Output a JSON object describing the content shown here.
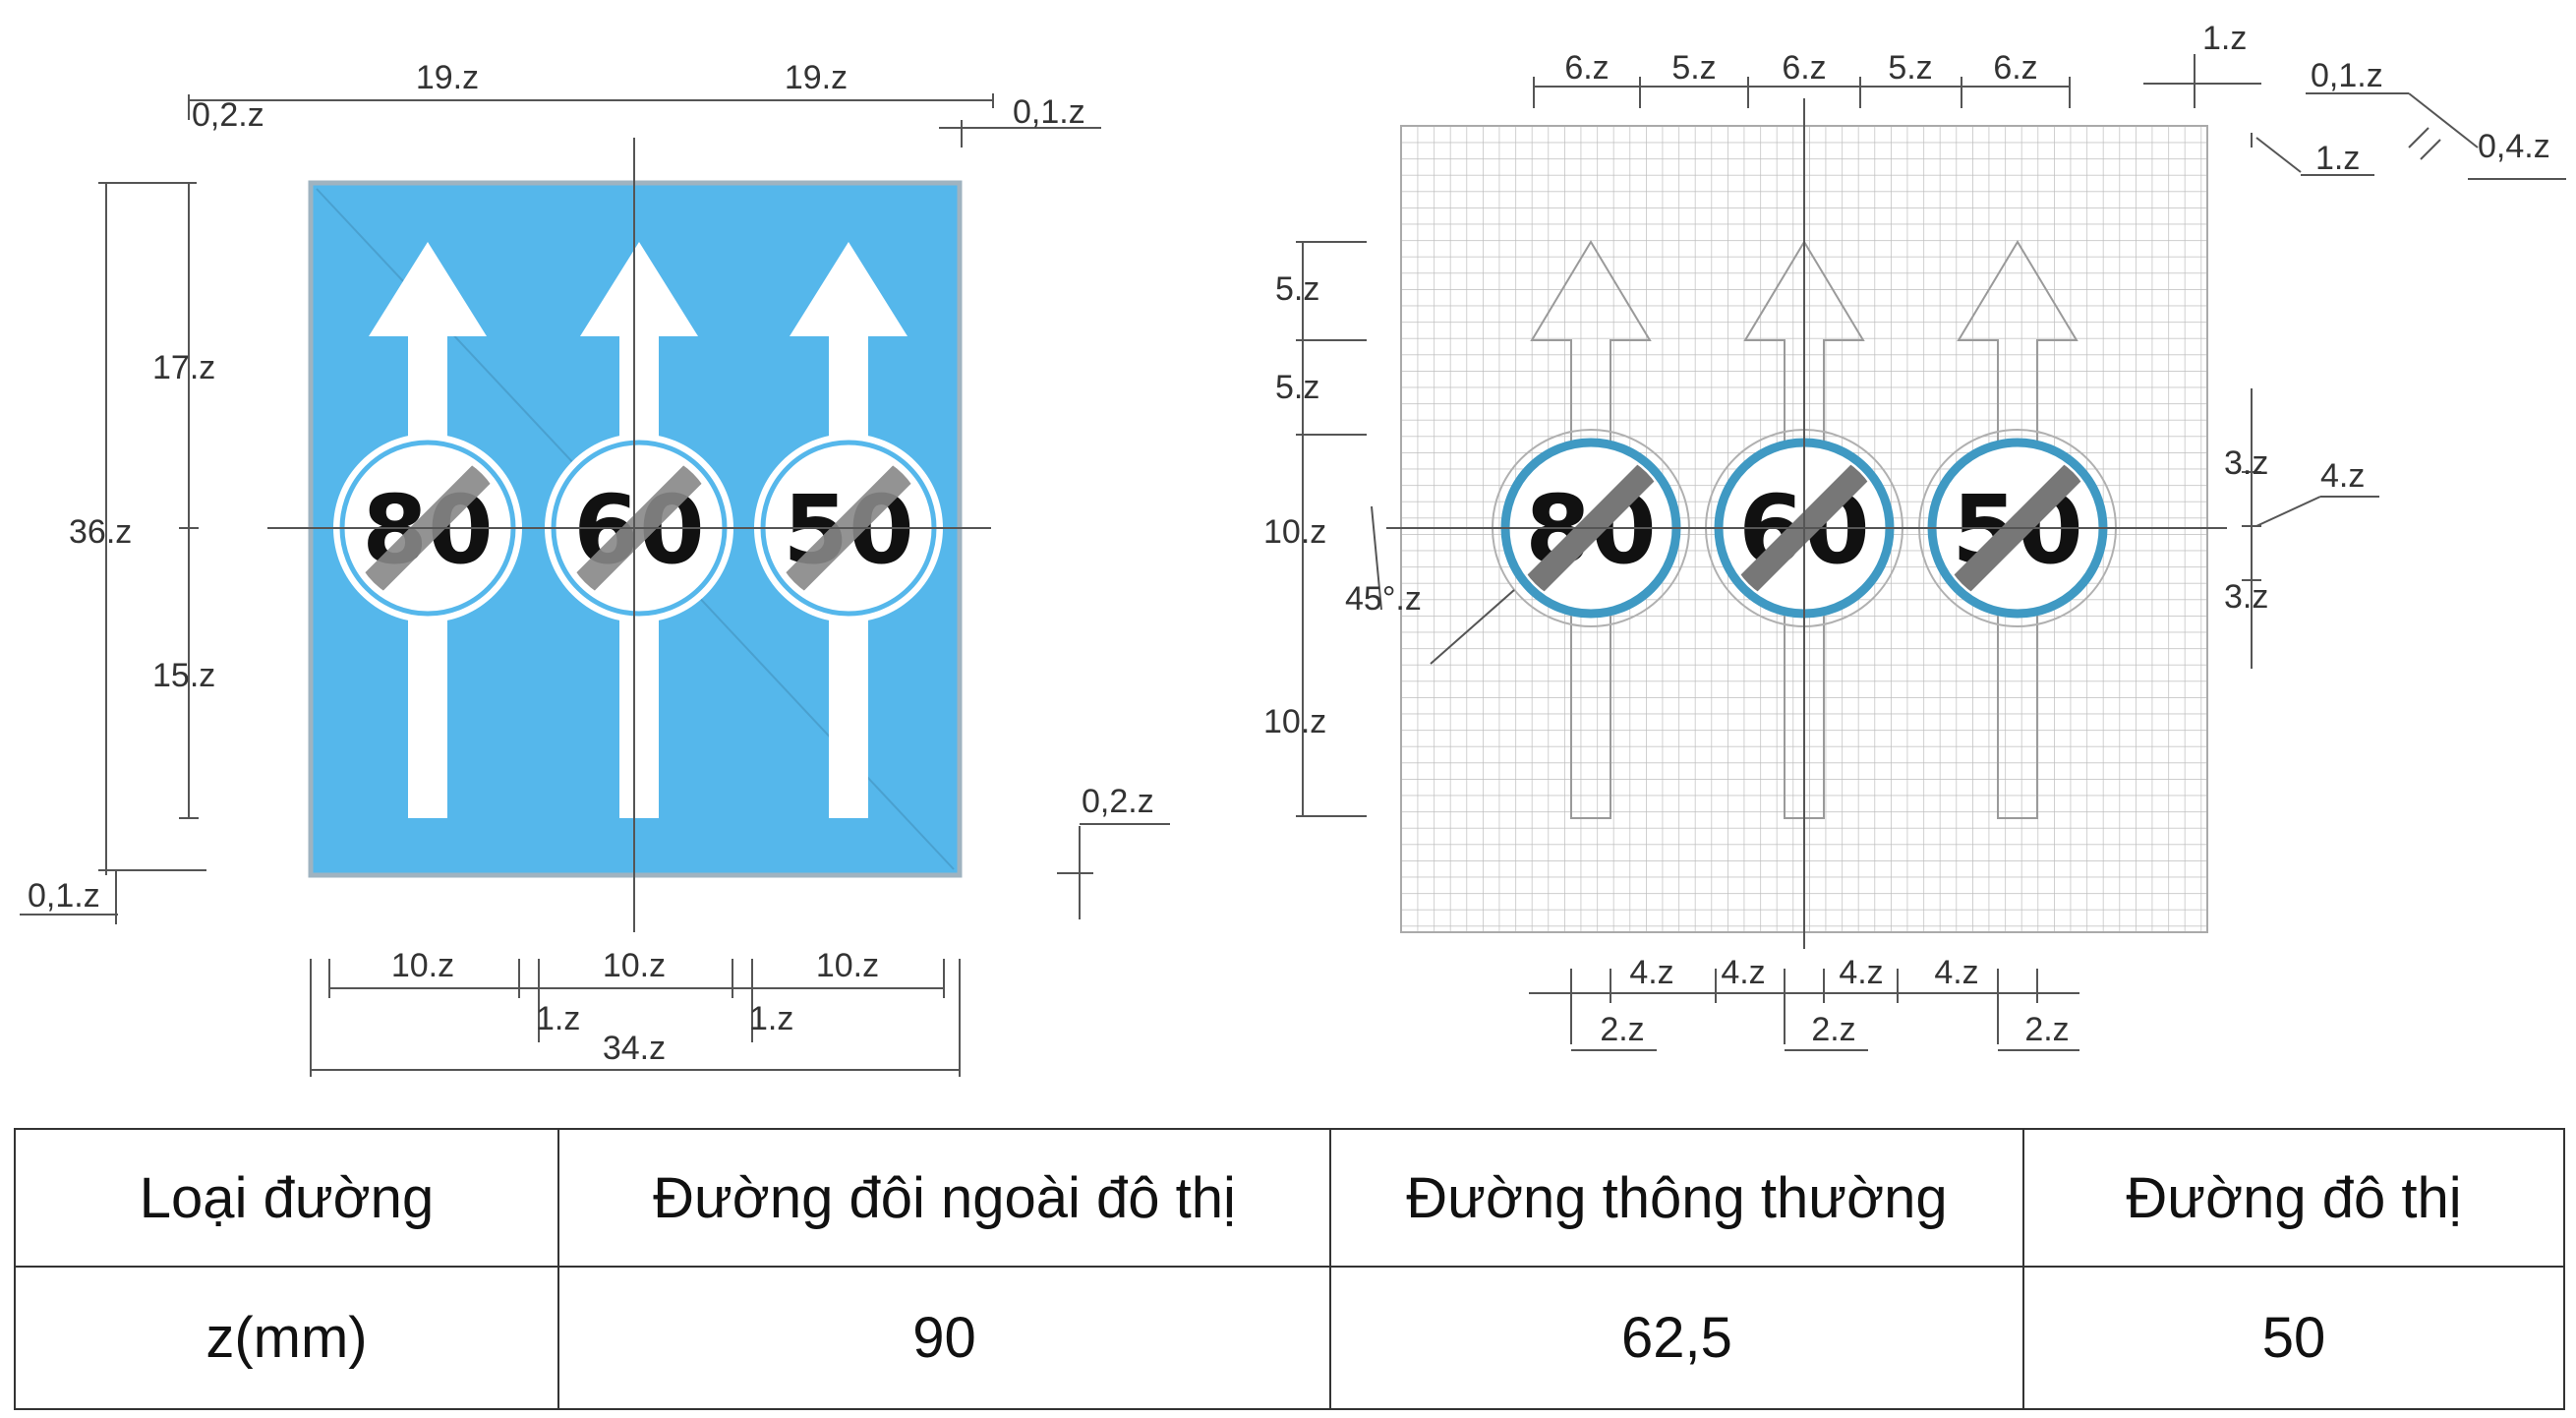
{
  "sign": {
    "background_color": "#55b7eb",
    "arrow_color": "#ffffff",
    "ring_color_left": "#ffffff",
    "ring_color_right": "#3f99c3",
    "limits": [
      "80",
      "60",
      "50"
    ]
  },
  "dimensions_left": {
    "top_width_left": "19.z",
    "top_width_right": "19.z",
    "top_offset": "0,2.z",
    "top_right_offset": "0,1.z",
    "height_total": "36.z",
    "upper_height": "17.z",
    "lower_height": "15.z",
    "bottom_offset_left": "0,1.z",
    "border_offset_right": "0,2.z",
    "column_widths": [
      "10.z",
      "10.z",
      "10.z"
    ],
    "gaps": [
      "1.z",
      "1.z"
    ],
    "total_width": "34.z"
  },
  "dimensions_right": {
    "top_spacing": [
      "6.z",
      "5.z",
      "6.z",
      "5.z",
      "6.z"
    ],
    "corner_labels": [
      "1.z",
      "0,1.z",
      "1.z",
      "0,4.z"
    ],
    "left_heights": [
      "5.z",
      "5.z",
      "10.z",
      "10.z"
    ],
    "angle_label": "45°.z",
    "ring_offsets": [
      "3.z",
      "4.z",
      "3.z"
    ],
    "bottom_widths": [
      "4.z",
      "4.z",
      "4.z",
      "4.z"
    ],
    "bottom_offsets": [
      "2.z",
      "2.z",
      "2.z"
    ]
  },
  "table": {
    "header": [
      "Loại đường",
      "Đường đôi ngoài đô thị",
      "Đường thông thường",
      "Đường đô thị"
    ],
    "row": [
      "z(mm)",
      "90",
      "62,5",
      "50"
    ]
  }
}
